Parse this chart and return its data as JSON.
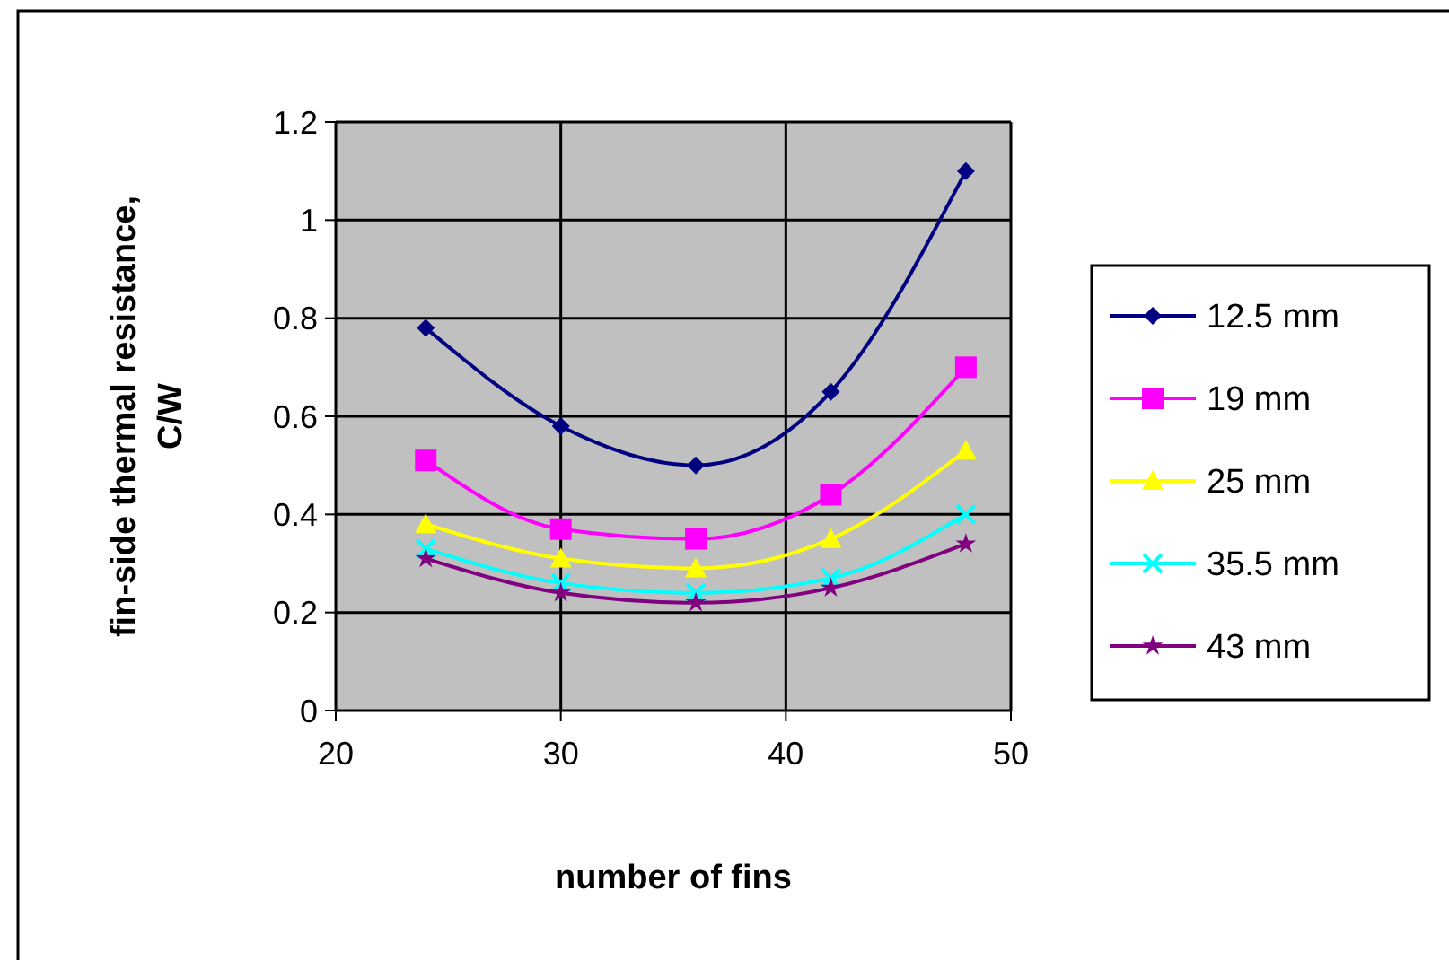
{
  "chart_data": {
    "type": "line",
    "xlabel": "number of fins",
    "ylabel": "fin-side thermal resistance, C/W",
    "x": [
      24,
      30,
      36,
      42,
      48
    ],
    "series": [
      {
        "name": "12.5 mm",
        "color": "#000080",
        "marker": "diamond",
        "values": [
          0.78,
          0.58,
          0.5,
          0.65,
          1.1
        ]
      },
      {
        "name": "19 mm",
        "color": "#ff00ff",
        "marker": "square",
        "values": [
          0.51,
          0.37,
          0.35,
          0.44,
          0.7
        ]
      },
      {
        "name": "25 mm",
        "color": "#ffff00",
        "marker": "triangle",
        "values": [
          0.38,
          0.31,
          0.29,
          0.35,
          0.53
        ]
      },
      {
        "name": "35.5 mm",
        "color": "#00ffff",
        "marker": "cross",
        "values": [
          0.33,
          0.26,
          0.24,
          0.27,
          0.4
        ]
      },
      {
        "name": "43 mm",
        "color": "#800080",
        "marker": "star",
        "values": [
          0.31,
          0.24,
          0.22,
          0.25,
          0.34
        ]
      }
    ],
    "xlim": [
      20,
      50
    ],
    "xticks": [
      20,
      30,
      40,
      50
    ],
    "ylim": [
      0,
      1.2
    ],
    "yticks": [
      0,
      0.2,
      0.4,
      0.6,
      0.8,
      1,
      1.2
    ],
    "grid": true,
    "legend": "right",
    "line_style": "solid"
  }
}
